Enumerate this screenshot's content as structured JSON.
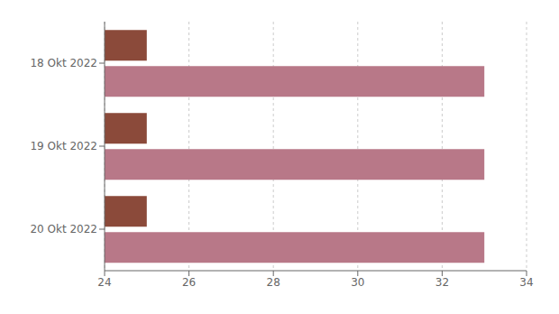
{
  "chart_data": {
    "type": "bar",
    "orientation": "horizontal",
    "categories": [
      "18 Okt 2022",
      "19 Okt 2022",
      "20 Okt 2022"
    ],
    "series": [
      {
        "color": "#8B4A3A",
        "values": [
          25,
          25,
          25
        ]
      },
      {
        "color": "#B87888",
        "values": [
          33,
          33,
          33
        ]
      }
    ],
    "xlim": [
      24,
      34
    ],
    "xticks": [
      24,
      26,
      28,
      30,
      32,
      34
    ],
    "grid": true
  }
}
